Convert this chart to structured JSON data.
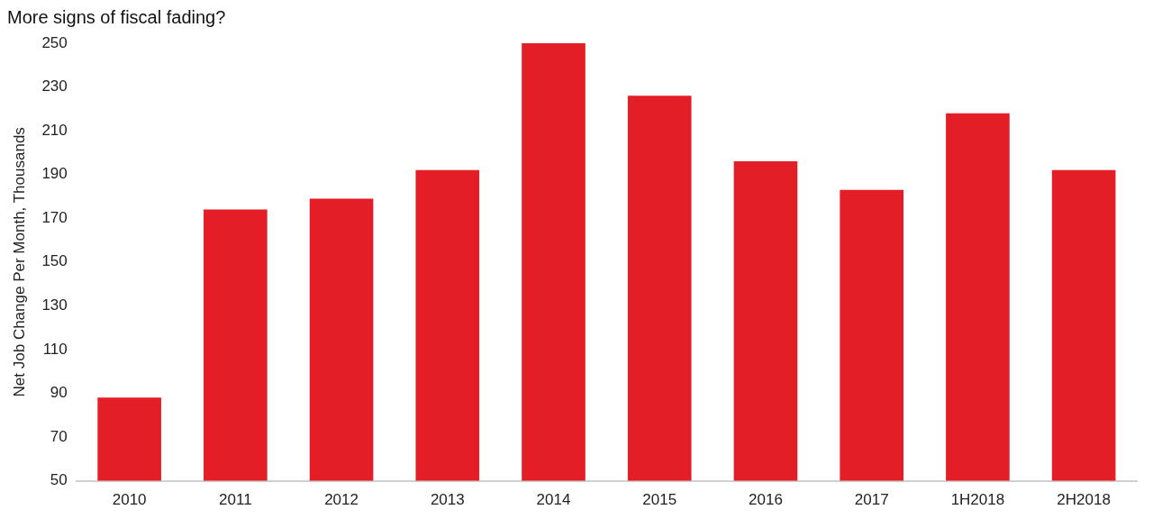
{
  "chart_data": {
    "type": "bar",
    "title": "More signs of fiscal fading?",
    "ylabel": "Net Job Change Per Month, Thousands",
    "categories": [
      "2010",
      "2011",
      "2012",
      "2013",
      "2014",
      "2015",
      "2016",
      "2017",
      "1H2018",
      "2H2018"
    ],
    "values": [
      88,
      174,
      179,
      192,
      250,
      226,
      196,
      183,
      218,
      192
    ],
    "color": "#e31e26",
    "ylim": [
      50,
      250
    ],
    "yticks": [
      50,
      70,
      90,
      110,
      130,
      150,
      170,
      190,
      210,
      230,
      250
    ],
    "grid": false,
    "legend": false
  }
}
